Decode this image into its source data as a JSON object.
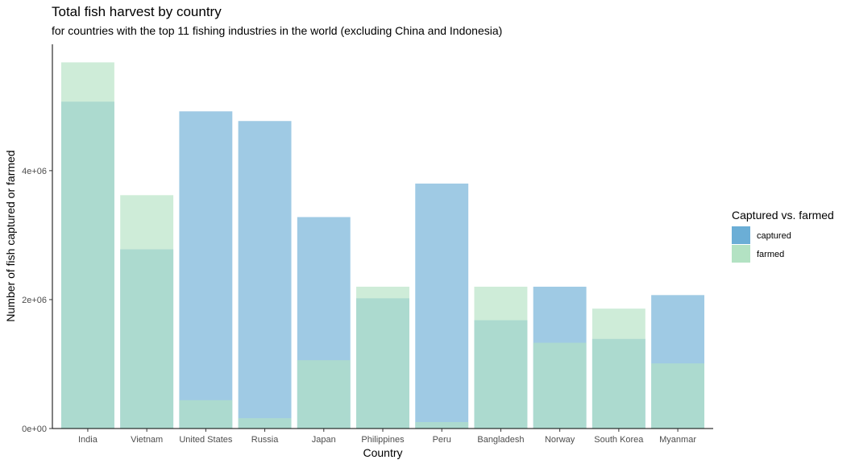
{
  "chart_data": {
    "type": "bar",
    "title": "Total fish harvest by country",
    "subtitle": "for countries with the top 11 fishing industries in the world (excluding China and Indonesia)",
    "xlabel": "Country",
    "ylabel": "Number of fish captured or farmed",
    "categories": [
      "India",
      "Vietnam",
      "United States",
      "Russia",
      "Japan",
      "Philippines",
      "Peru",
      "Bangladesh",
      "Norway",
      "South Korea",
      "Myanmar"
    ],
    "series": [
      {
        "name": "captured",
        "color": "#6baed6",
        "values": [
          5070000,
          2780000,
          4920000,
          4770000,
          3280000,
          2020000,
          3800000,
          1680000,
          2200000,
          1390000,
          2070000
        ]
      },
      {
        "name": "farmed",
        "color": "#b3e2c3",
        "values": [
          5680000,
          3620000,
          440000,
          160000,
          1060000,
          2200000,
          100000,
          2200000,
          1330000,
          1860000,
          1010000
        ]
      }
    ],
    "overlay": true,
    "ylim": [
      0,
      5960000
    ],
    "yticks": [
      {
        "value": 0,
        "label": "0e+00"
      },
      {
        "value": 2000000,
        "label": "2e+06"
      },
      {
        "value": 4000000,
        "label": "4e+06"
      }
    ],
    "grid": false,
    "legend": {
      "title": "Captured vs. farmed",
      "position": "right",
      "entries": [
        {
          "label": "captured",
          "color": "#6baed6"
        },
        {
          "label": "farmed",
          "color": "#b3e2c3"
        }
      ]
    }
  }
}
